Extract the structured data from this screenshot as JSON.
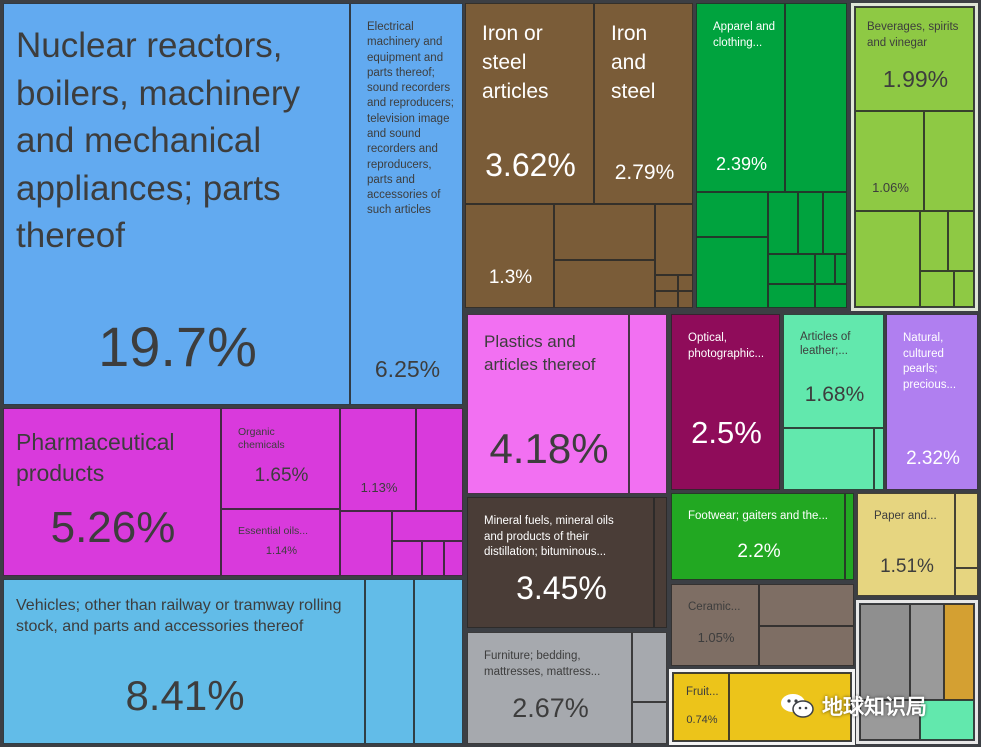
{
  "chart_data": {
    "type": "treemap",
    "title": "",
    "tiles": [
      {
        "label": "Nuclear reactors, boilers, machinery and mechanical appliances; parts thereof",
        "value": 19.7,
        "color": "#62aaf0"
      },
      {
        "label": "Electrical machinery and equipment and parts thereof; sound recorders and reproducers; television image and sound recorders and reproducers, parts and accessories of such articles",
        "value": 6.25,
        "color": "#62aaf0"
      },
      {
        "label": "Iron or steel articles",
        "value": 3.62,
        "color": "#7a5c38"
      },
      {
        "label": "Iron and steel",
        "value": 2.79,
        "color": "#7a5c38"
      },
      {
        "label": "",
        "value": 1.3,
        "color": "#7a5c38"
      },
      {
        "label": "Apparel and clothing...",
        "value": 2.39,
        "color": "#00a33e"
      },
      {
        "label": "Beverages, spirits and vinegar",
        "value": 1.99,
        "color": "#8ec944"
      },
      {
        "label": "",
        "value": 1.06,
        "color": "#8ec944"
      },
      {
        "label": "Pharmaceutical products",
        "value": 5.26,
        "color": "#d93adc"
      },
      {
        "label": "Organic chemicals",
        "value": 1.65,
        "color": "#d93adc"
      },
      {
        "label": "",
        "value": 1.13,
        "color": "#d93adc"
      },
      {
        "label": "Essential oils...",
        "value": 1.14,
        "color": "#d93adc"
      },
      {
        "label": "Plastics and articles thereof",
        "value": 4.18,
        "color": "#f270f2"
      },
      {
        "label": "Optical, photographic...",
        "value": 2.5,
        "color": "#8f0c5a"
      },
      {
        "label": "Articles of leather;...",
        "value": 1.68,
        "color": "#62e8ad"
      },
      {
        "label": "Natural, cultured pearls; precious...",
        "value": 2.32,
        "color": "#b07ff0"
      },
      {
        "label": "Vehicles; other than railway or tramway rolling stock, and parts and accessories thereof",
        "value": 8.41,
        "color": "#62bce8"
      },
      {
        "label": "Mineral fuels, mineral oils and products of their distillation; bituminous...",
        "value": 3.45,
        "color": "#4a3d37"
      },
      {
        "label": "Footwear; gaiters and the...",
        "value": 2.2,
        "color": "#22a822"
      },
      {
        "label": "Paper and...",
        "value": 1.51,
        "color": "#e6d580"
      },
      {
        "label": "Ceramic...",
        "value": 1.05,
        "color": "#7e6e64"
      },
      {
        "label": "Furniture; bedding, mattresses, mattress...",
        "value": 2.67,
        "color": "#a6a9ae"
      },
      {
        "label": "Fruit...",
        "value": 0.74,
        "color": "#ecc41a"
      }
    ]
  },
  "tiles": {
    "nuclear": {
      "label": "Nuclear reactors, boilers, machinery and mechanical appliances; parts thereof",
      "pct": "19.7%"
    },
    "electrical": {
      "label": "Electrical machinery and equipment and parts thereof; sound recorders and reproducers; television image and sound recorders and reproducers, parts and accessories of such articles",
      "pct": "6.25%"
    },
    "iron_articles": {
      "label": "Iron or steel articles",
      "pct": "3.62%"
    },
    "iron_steel": {
      "label": "Iron and steel",
      "pct": "2.79%"
    },
    "iron_small": {
      "pct": "1.3%"
    },
    "apparel": {
      "label": "Apparel and clothing...",
      "pct": "2.39%"
    },
    "beverages": {
      "label": "Beverages, spirits and vinegar",
      "pct": "1.99%"
    },
    "bev_small": {
      "pct": "1.06%"
    },
    "pharma": {
      "label": "Pharmaceutical products",
      "pct": "5.26%"
    },
    "organic": {
      "label": "Organic chemicals",
      "pct": "1.65%"
    },
    "chem_small": {
      "pct": "1.13%"
    },
    "essential": {
      "label": "Essential oils...",
      "pct": "1.14%"
    },
    "plastics": {
      "label": "Plastics and articles thereof",
      "pct": "4.18%"
    },
    "optical": {
      "label": "Optical, photographic...",
      "pct": "2.5%"
    },
    "leather": {
      "label": "Articles of leather;...",
      "pct": "1.68%"
    },
    "pearls": {
      "label": "Natural, cultured pearls; precious...",
      "pct": "2.32%"
    },
    "vehicles": {
      "label": "Vehicles; other than railway or tramway rolling stock, and parts and accessories thereof",
      "pct": "8.41%"
    },
    "mineral": {
      "label": "Mineral fuels, mineral oils and products of their distillation; bituminous...",
      "pct": "3.45%"
    },
    "footwear": {
      "label": "Footwear; gaiters and the...",
      "pct": "2.2%"
    },
    "paper": {
      "label": "Paper and...",
      "pct": "1.51%"
    },
    "ceramic": {
      "label": "Ceramic...",
      "pct": "1.05%"
    },
    "furniture": {
      "label": "Furniture; bedding, mattresses, mattress...",
      "pct": "2.67%"
    },
    "fruit": {
      "label": "Fruit...",
      "pct": "0.74%"
    }
  },
  "watermark": {
    "text": "地球知识局",
    "icon": "wechat-icon"
  },
  "colors": {
    "background": "#3c3f44",
    "machinery": "#62aaf0",
    "metals": "#7a5c38",
    "textiles": "#00a33e",
    "foodstuffs": "#8ec944",
    "chemicals": "#d93adc",
    "plastics": "#f270f2",
    "instruments": "#8f0c5a",
    "hides": "#62e8ad",
    "precious": "#b07ff0",
    "transport": "#62bce8",
    "mineral": "#4a3d37",
    "footwear": "#22a822",
    "paper": "#e6d580",
    "stone": "#7e6e64",
    "misc": "#a6a9ae",
    "vegetable": "#ecc41a"
  }
}
